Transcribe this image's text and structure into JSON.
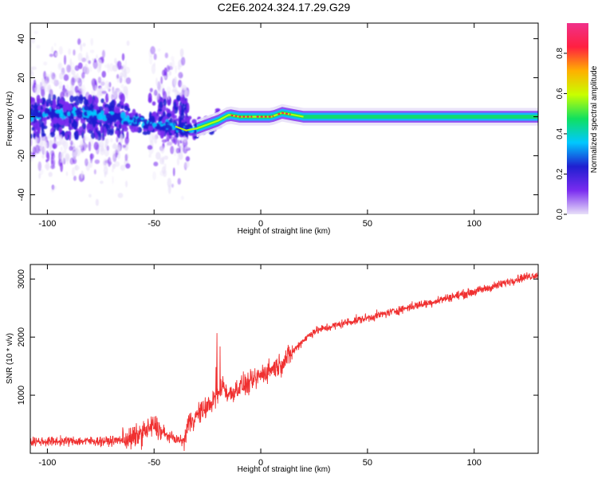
{
  "figure_title": "C2E6.2024.324.17.29.G29",
  "colors": {
    "snr_line": "#f03030",
    "axis": "#000000",
    "spectrogram_scale": [
      "#e8e0f8",
      "#7a2cf0",
      "#1f1fd0",
      "#00c8ff",
      "#10e060",
      "#c8ff00",
      "#ffb000",
      "#ff2040",
      "#f0308a"
    ]
  },
  "chart_data": [
    {
      "type": "heatmap",
      "title": "",
      "xlabel": "Height of straight line (km)",
      "ylabel": "Frequency (Hz)",
      "xlim": [
        -108,
        130
      ],
      "ylim": [
        -50,
        48
      ],
      "x_ticks": [
        "-100",
        "-50",
        "0",
        "50",
        "100"
      ],
      "y_ticks": [
        "40",
        "20",
        "0",
        "-20",
        "-40"
      ],
      "colorbar": {
        "label": "Normalized spectral amplitude",
        "range": [
          0.0,
          0.95
        ],
        "ticks": [
          "0.0",
          "0.2",
          "0.4",
          "0.6",
          "0.8"
        ]
      },
      "ridge": {
        "x": [
          -108,
          -80,
          -60,
          -50,
          -40,
          -35,
          -30,
          -25,
          -20,
          -15,
          -10,
          0,
          5,
          10,
          15,
          20,
          50,
          100,
          130
        ],
        "frequency": [
          1,
          2,
          -2,
          -4,
          -5,
          -7,
          -6,
          -4,
          -2,
          1,
          0,
          0,
          0,
          2,
          1,
          0,
          0,
          0,
          0
        ]
      }
    },
    {
      "type": "line",
      "title": "",
      "xlabel": "Height of straight line (km)",
      "ylabel": "SNR (10 * v/v)",
      "xlim": [
        -108,
        130
      ],
      "ylim": [
        0,
        3250
      ],
      "x_ticks": [
        "-100",
        "-50",
        "0",
        "50",
        "100"
      ],
      "y_ticks": [
        "3000",
        "2000",
        "1000"
      ],
      "series": [
        {
          "x": [
            -108,
            -90,
            -70,
            -60,
            -55,
            -50,
            -45,
            -40,
            -36,
            -34,
            -30,
            -25,
            -20,
            -18,
            -15,
            -10,
            -5,
            0,
            5,
            10,
            15,
            20,
            25,
            30,
            40,
            50,
            60,
            70,
            80,
            90,
            100,
            110,
            120,
            130
          ],
          "values": [
            200,
            210,
            210,
            260,
            360,
            480,
            320,
            250,
            200,
            520,
            650,
            800,
            1000,
            1200,
            1000,
            1150,
            1200,
            1350,
            1450,
            1550,
            1750,
            1950,
            2100,
            2150,
            2250,
            2330,
            2420,
            2520,
            2600,
            2700,
            2780,
            2880,
            3000,
            3080
          ]
        }
      ]
    }
  ]
}
